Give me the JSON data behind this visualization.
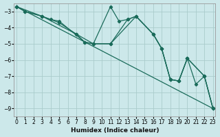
{
  "xlabel": "Humidex (Indice chaleur)",
  "bg_color": "#cce8ea",
  "grid_color": "#aacccc",
  "line_color": "#1a6b5a",
  "xlim": [
    0,
    23
  ],
  "ylim": [
    -9.5,
    -2.5
  ],
  "yticks": [
    -3,
    -4,
    -5,
    -6,
    -7,
    -8,
    -9
  ],
  "xticks": [
    0,
    1,
    2,
    3,
    4,
    5,
    6,
    7,
    8,
    9,
    10,
    11,
    12,
    13,
    14,
    15,
    16,
    17,
    18,
    19,
    20,
    21,
    22,
    23
  ],
  "lines": [
    {
      "x": [
        0,
        1,
        3,
        4,
        5,
        8,
        9,
        11,
        12,
        13,
        14,
        16,
        17,
        18,
        19,
        20,
        21,
        22,
        23
      ],
      "y": [
        -2.7,
        -3.0,
        -3.3,
        -3.5,
        -3.6,
        -4.9,
        -5.0,
        -2.7,
        -3.6,
        -3.5,
        -3.3,
        -4.4,
        -5.3,
        -7.2,
        -7.3,
        -5.9,
        -7.5,
        -7.0,
        -9.0
      ]
    },
    {
      "x": [
        0,
        1,
        3,
        5,
        7,
        8,
        9,
        11,
        13,
        14,
        16,
        17,
        18,
        19,
        20,
        22,
        23
      ],
      "y": [
        -2.7,
        -3.0,
        -3.3,
        -3.7,
        -4.4,
        -4.9,
        -5.0,
        -5.0,
        -3.5,
        -3.3,
        -4.4,
        -5.3,
        -7.2,
        -7.3,
        -5.9,
        -7.0,
        -9.0
      ]
    },
    {
      "x": [
        0,
        3,
        7,
        9,
        11,
        14,
        16,
        17,
        18,
        19,
        20,
        22,
        23
      ],
      "y": [
        -2.7,
        -3.3,
        -4.4,
        -5.0,
        -5.0,
        -3.3,
        -4.4,
        -5.3,
        -7.2,
        -7.3,
        -5.9,
        -7.0,
        -9.0
      ]
    },
    {
      "x": [
        0,
        23
      ],
      "y": [
        -2.7,
        -9.0
      ]
    }
  ]
}
